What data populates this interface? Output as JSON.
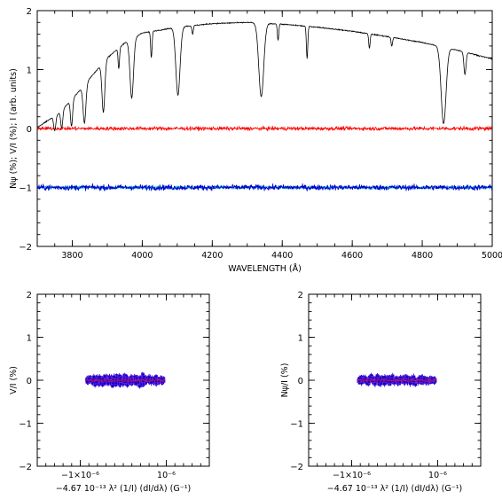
{
  "chart_data": [
    {
      "type": "line",
      "xlabel": "WAVELENGTH (Å)",
      "ylabel": "N_ψ (%); V/I (%); I (arb. units)",
      "xlim": [
        3700,
        5000
      ],
      "ylim": [
        -2,
        2
      ],
      "x_ticks": [
        3800,
        4000,
        4200,
        4400,
        4600,
        4800,
        5000
      ],
      "y_ticks": [
        -2,
        -1,
        0,
        1,
        2
      ],
      "series": [
        {
          "color": "#000000",
          "continuum": [
            [
              3700,
              0.02
            ],
            [
              3760,
              0.25
            ],
            [
              3800,
              0.5
            ],
            [
              3850,
              0.85
            ],
            [
              3900,
              1.2
            ],
            [
              3950,
              1.45
            ],
            [
              4000,
              1.62
            ],
            [
              4100,
              1.72
            ],
            [
              4200,
              1.78
            ],
            [
              4300,
              1.8
            ],
            [
              4400,
              1.77
            ],
            [
              4500,
              1.72
            ],
            [
              4600,
              1.65
            ],
            [
              4700,
              1.56
            ],
            [
              4800,
              1.46
            ],
            [
              4900,
              1.33
            ],
            [
              5000,
              1.18
            ]
          ],
          "lines": [
            {
              "center": 3750,
              "depth": 0.25,
              "width": 3
            },
            {
              "center": 3770,
              "depth": 0.3,
              "width": 3
            },
            {
              "center": 3798,
              "depth": 0.45,
              "width": 3
            },
            {
              "center": 3835,
              "depth": 0.65,
              "width": 4
            },
            {
              "center": 3889,
              "depth": 0.85,
              "width": 4
            },
            {
              "center": 3933,
              "depth": 0.35,
              "width": 2
            },
            {
              "center": 3970,
              "depth": 1.0,
              "width": 5
            },
            {
              "center": 4026,
              "depth": 0.45,
              "width": 2
            },
            {
              "center": 4102,
              "depth": 1.15,
              "width": 6
            },
            {
              "center": 4144,
              "depth": 0.15,
              "width": 2
            },
            {
              "center": 4340,
              "depth": 1.25,
              "width": 7
            },
            {
              "center": 4388,
              "depth": 0.28,
              "width": 2
            },
            {
              "center": 4471,
              "depth": 0.55,
              "width": 2
            },
            {
              "center": 4649,
              "depth": 0.25,
              "width": 2
            },
            {
              "center": 4713,
              "depth": 0.15,
              "width": 2
            },
            {
              "center": 4861,
              "depth": 1.3,
              "width": 7
            },
            {
              "center": 4922,
              "depth": 0.38,
              "width": 3
            }
          ]
        },
        {
          "color": "#ff0000",
          "level": 0.0,
          "noise": 0.03
        },
        {
          "color": "#00c8c8",
          "level": -1.0,
          "noise": 0.025
        },
        {
          "color": "#0000cd",
          "level": -1.0,
          "noise": 0.045
        }
      ]
    },
    {
      "type": "scatter",
      "xlabel": "−4.67 10⁻¹³ λ² (1/I) (dI/dλ) (G⁻¹)",
      "ylabel": "V/I (%)",
      "xlim": [
        -2e-06,
        2e-06
      ],
      "ylim": [
        -2,
        2
      ],
      "x_ticks": [
        -1e-06,
        1e-06
      ],
      "x_tick_labels": [
        "−1×10⁻⁶",
        "10⁻⁶"
      ],
      "y_ticks": [
        -2,
        -1,
        0,
        1,
        2
      ],
      "point_cloud": {
        "x_range": [
          -8.5e-07,
          9.5e-07
        ],
        "y_spread": 0.1,
        "error_bar": 0.05,
        "color": "#0000cd",
        "edge_color": "#8a2be2"
      },
      "fit_line": {
        "color": "#ff0000",
        "y": 0.0
      }
    },
    {
      "type": "scatter",
      "xlabel": "−4.67 10⁻¹³ λ² (1/I) (dI/dλ) (G⁻¹)",
      "ylabel": "N_ψ/I (%)",
      "xlim": [
        -2e-06,
        2e-06
      ],
      "ylim": [
        -2,
        2
      ],
      "x_ticks": [
        -1e-06,
        1e-06
      ],
      "x_tick_labels": [
        "−1×10⁻⁶",
        "10⁻⁶"
      ],
      "y_ticks": [
        -2,
        -1,
        0,
        1,
        2
      ],
      "point_cloud": {
        "x_range": [
          -8.5e-07,
          9.5e-07
        ],
        "y_spread": 0.08,
        "error_bar": 0.05,
        "color": "#0000cd",
        "edge_color": "#8a2be2"
      },
      "fit_line": {
        "color": "#ff0000",
        "y": 0.0
      }
    }
  ]
}
